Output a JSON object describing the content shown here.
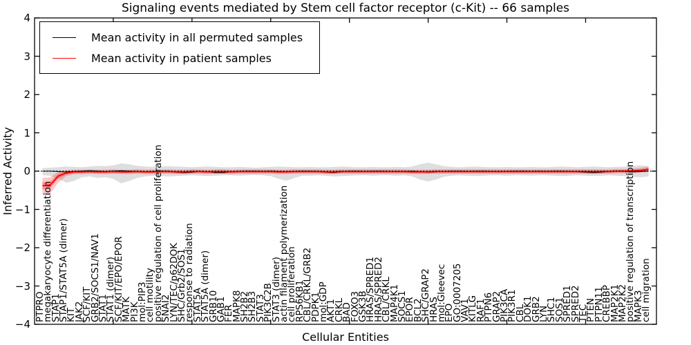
{
  "figure": {
    "title": "Signaling events mediated by Stem cell factor receptor (c-Kit) -- 66 samples",
    "xlabel": "Cellular Entities",
    "ylabel": "Inferred Activity"
  },
  "legend": {
    "items": [
      {
        "label": "Mean activity in all permuted samples",
        "color": "#000000"
      },
      {
        "label": "Mean activity in patient samples",
        "color": "#ff0000"
      }
    ]
  },
  "chart_data": {
    "type": "line",
    "title": "Signaling events mediated by Stem cell factor receptor (c-Kit) -- 66 samples",
    "xlabel": "Cellular Entities",
    "ylabel": "Inferred Activity",
    "ylim": [
      -4,
      4
    ],
    "yticks": [
      -4,
      -3,
      -2,
      -1,
      0,
      1,
      2,
      3,
      4
    ],
    "xticks_numeric": [
      10,
      20,
      30,
      40,
      50,
      60,
      70
    ],
    "grid": false,
    "legend_position": "upper left",
    "zero_line": {
      "y": 0,
      "style": "dotted",
      "color": "#000000"
    },
    "categories": [
      "PTPRO",
      "megakaryocyte differentiation",
      "STAP1",
      "STAP1/STAT5A (dimer)",
      "KIT",
      "JAK2",
      "SCF/KIT",
      "GRB2/SOCS1/NAV1",
      "STAT1",
      "STAT1 (dimer)",
      "SCF/KIT/EPO/EPOR",
      "MATK",
      "PI3K",
      "mol:PIP3",
      "cell motility",
      "positive regulation of cell proliferation",
      "SNAI2",
      "LYN/TEC/p62DOK",
      "SHC/Grb2/SOS1",
      "response to radiation",
      "STAT5A",
      "STAT5A (dimer)",
      "GRB10",
      "GAB1",
      "FER",
      "MAPK8",
      "SH2B2",
      "SH2B3",
      "STAT3",
      "PIK3C2B",
      "STAT3 (dimer)",
      "actin filament polymerization",
      "cell proliferation",
      "RPS6KB1",
      "CBL/CRKL/GRB2",
      "PDPK1",
      "mol:GDP",
      "AKT1",
      "CRKL",
      "BAD",
      "FOXO3",
      "GSK3B",
      "HRAS/SPRED1",
      "HRAS/SPRED2",
      "CBL/CRKL",
      "MAP4K1",
      "SOCS1",
      "EPOR",
      "BCL2",
      "SHC/GRAP2",
      "HRAS",
      "mol:Gleevec",
      "EPO",
      "GO:0007205",
      "VAV1",
      "KITLG",
      "RAF1",
      "PTPN6",
      "GRAP2",
      "PIK3CA",
      "PIK3R1",
      "CBL",
      "DOK1",
      "GRB2",
      "LYN",
      "SHC1",
      "SOS1",
      "SPRED1",
      "SPRED2",
      "TEC",
      "PTEN",
      "PTPN11",
      "CREBBP",
      "MAP2K1",
      "MAP2K2",
      "positive regulation of transcription",
      "MAPK3",
      "cell migration"
    ],
    "series": [
      {
        "name": "Mean activity in all permuted samples",
        "color": "#000000",
        "width": 1.1,
        "values": [
          0.0,
          0.0,
          -0.01,
          -0.02,
          -0.01,
          0.0,
          0.01,
          0.0,
          -0.01,
          0.0,
          0.01,
          0.0,
          -0.01,
          -0.02,
          -0.01,
          0.0,
          0.0,
          -0.03,
          -0.04,
          -0.03,
          -0.01,
          -0.02,
          -0.04,
          -0.04,
          -0.02,
          -0.01,
          0.0,
          0.0,
          -0.01,
          0.0,
          -0.01,
          -0.02,
          -0.01,
          0.0,
          0.0,
          -0.01,
          -0.03,
          -0.04,
          -0.02,
          0.0,
          0.0,
          -0.01,
          0.0,
          0.0,
          -0.01,
          -0.02,
          -0.01,
          0.0,
          -0.02,
          -0.03,
          -0.02,
          -0.01,
          0.0,
          0.0,
          -0.01,
          0.0,
          0.0,
          -0.01,
          -0.02,
          -0.01,
          0.0,
          0.0,
          -0.01,
          0.0,
          -0.01,
          0.0,
          0.0,
          -0.01,
          -0.02,
          -0.03,
          -0.04,
          -0.03,
          -0.01,
          0.0,
          -0.01,
          -0.02,
          -0.01,
          0.0
        ]
      },
      {
        "name": "Mean activity in patient samples",
        "color": "#ff0000",
        "width": 1.8,
        "values": [
          -0.38,
          -0.36,
          -0.13,
          -0.05,
          -0.02,
          -0.02,
          -0.01,
          -0.02,
          -0.02,
          -0.01,
          -0.02,
          -0.02,
          -0.01,
          -0.02,
          -0.02,
          -0.01,
          -0.01,
          -0.02,
          -0.02,
          -0.01,
          -0.01,
          -0.02,
          -0.01,
          -0.01,
          -0.02,
          -0.01,
          -0.01,
          -0.01,
          -0.01,
          -0.01,
          -0.02,
          -0.02,
          -0.01,
          -0.01,
          -0.01,
          -0.01,
          -0.02,
          -0.02,
          -0.01,
          -0.01,
          -0.01,
          -0.01,
          -0.01,
          -0.01,
          -0.01,
          -0.01,
          -0.01,
          -0.02,
          -0.02,
          -0.02,
          -0.01,
          -0.01,
          -0.01,
          -0.01,
          -0.01,
          -0.01,
          -0.01,
          -0.01,
          -0.01,
          -0.01,
          -0.01,
          -0.01,
          -0.01,
          -0.01,
          -0.01,
          -0.01,
          -0.01,
          -0.01,
          -0.01,
          -0.01,
          -0.01,
          -0.01,
          -0.01,
          0.0,
          0.0,
          0.01,
          0.02,
          0.05
        ]
      }
    ],
    "bands": [
      {
        "name": "permuted-sample-range",
        "color": "#000000",
        "alpha": 0.13,
        "upper": [
          0.08,
          0.09,
          0.1,
          0.12,
          0.11,
          0.1,
          0.12,
          0.14,
          0.13,
          0.15,
          0.2,
          0.18,
          0.14,
          0.12,
          0.11,
          0.12,
          0.13,
          0.12,
          0.11,
          0.1,
          0.11,
          0.12,
          0.11,
          0.1,
          0.1,
          0.11,
          0.1,
          0.09,
          0.1,
          0.11,
          0.12,
          0.11,
          0.1,
          0.1,
          0.11,
          0.1,
          0.1,
          0.11,
          0.12,
          0.11,
          0.1,
          0.1,
          0.11,
          0.1,
          0.1,
          0.11,
          0.1,
          0.12,
          0.18,
          0.22,
          0.18,
          0.13,
          0.11,
          0.1,
          0.11,
          0.12,
          0.11,
          0.1,
          0.1,
          0.11,
          0.1,
          0.1,
          0.11,
          0.1,
          0.1,
          0.11,
          0.12,
          0.11,
          0.1,
          0.11,
          0.12,
          0.11,
          0.1,
          0.11,
          0.12,
          0.14,
          0.15,
          0.13
        ],
        "lower": [
          -0.1,
          -0.12,
          -0.2,
          -0.3,
          -0.26,
          -0.16,
          -0.14,
          -0.18,
          -0.16,
          -0.2,
          -0.32,
          -0.26,
          -0.18,
          -0.14,
          -0.12,
          -0.13,
          -0.14,
          -0.13,
          -0.12,
          -0.11,
          -0.12,
          -0.13,
          -0.12,
          -0.11,
          -0.11,
          -0.12,
          -0.11,
          -0.1,
          -0.11,
          -0.13,
          -0.2,
          -0.25,
          -0.18,
          -0.12,
          -0.12,
          -0.11,
          -0.12,
          -0.14,
          -0.13,
          -0.12,
          -0.11,
          -0.11,
          -0.12,
          -0.11,
          -0.11,
          -0.12,
          -0.11,
          -0.14,
          -0.22,
          -0.27,
          -0.22,
          -0.15,
          -0.12,
          -0.11,
          -0.12,
          -0.13,
          -0.12,
          -0.11,
          -0.11,
          -0.12,
          -0.11,
          -0.11,
          -0.12,
          -0.11,
          -0.11,
          -0.12,
          -0.13,
          -0.12,
          -0.11,
          -0.12,
          -0.13,
          -0.12,
          -0.11,
          -0.12,
          -0.13,
          -0.15,
          -0.16,
          -0.14
        ]
      },
      {
        "name": "patient-sample-range-outer",
        "color": "#ff0000",
        "alpha": 0.22,
        "upper": [
          -0.18,
          -0.16,
          -0.02,
          0.02,
          0.04,
          0.04,
          0.05,
          0.04,
          0.04,
          0.05,
          0.04,
          0.04,
          0.05,
          0.04,
          0.04,
          0.05,
          0.05,
          0.04,
          0.04,
          0.05,
          0.05,
          0.04,
          0.05,
          0.05,
          0.04,
          0.05,
          0.05,
          0.05,
          0.05,
          0.05,
          0.04,
          0.04,
          0.05,
          0.05,
          0.05,
          0.05,
          0.04,
          0.04,
          0.05,
          0.05,
          0.05,
          0.05,
          0.05,
          0.05,
          0.05,
          0.05,
          0.05,
          0.04,
          0.04,
          0.04,
          0.05,
          0.05,
          0.05,
          0.05,
          0.05,
          0.05,
          0.05,
          0.05,
          0.05,
          0.05,
          0.05,
          0.05,
          0.05,
          0.05,
          0.05,
          0.05,
          0.05,
          0.05,
          0.05,
          0.05,
          0.05,
          0.05,
          0.05,
          0.06,
          0.06,
          0.07,
          0.09,
          0.12
        ],
        "lower": [
          -0.62,
          -0.58,
          -0.3,
          -0.13,
          -0.08,
          -0.08,
          -0.07,
          -0.08,
          -0.08,
          -0.07,
          -0.08,
          -0.08,
          -0.07,
          -0.08,
          -0.08,
          -0.07,
          -0.07,
          -0.08,
          -0.08,
          -0.07,
          -0.07,
          -0.08,
          -0.07,
          -0.07,
          -0.08,
          -0.07,
          -0.07,
          -0.07,
          -0.07,
          -0.07,
          -0.08,
          -0.08,
          -0.07,
          -0.07,
          -0.07,
          -0.07,
          -0.08,
          -0.08,
          -0.07,
          -0.07,
          -0.07,
          -0.07,
          -0.07,
          -0.07,
          -0.07,
          -0.07,
          -0.07,
          -0.08,
          -0.08,
          -0.08,
          -0.07,
          -0.07,
          -0.07,
          -0.07,
          -0.07,
          -0.07,
          -0.07,
          -0.07,
          -0.07,
          -0.07,
          -0.07,
          -0.07,
          -0.07,
          -0.07,
          -0.07,
          -0.07,
          -0.07,
          -0.07,
          -0.07,
          -0.07,
          -0.07,
          -0.07,
          -0.07,
          -0.06,
          -0.06,
          -0.05,
          -0.04,
          -0.02
        ]
      },
      {
        "name": "patient-sample-range-inner",
        "color": "#ff0000",
        "alpha": 0.3,
        "upper": [
          -0.29,
          -0.27,
          -0.08,
          -0.02,
          0.01,
          0.01,
          0.02,
          0.01,
          0.01,
          0.02,
          0.01,
          0.01,
          0.02,
          0.01,
          0.01,
          0.02,
          0.02,
          0.01,
          0.01,
          0.02,
          0.02,
          0.01,
          0.02,
          0.02,
          0.01,
          0.02,
          0.02,
          0.02,
          0.02,
          0.02,
          0.01,
          0.01,
          0.02,
          0.02,
          0.02,
          0.02,
          0.01,
          0.01,
          0.02,
          0.02,
          0.02,
          0.02,
          0.02,
          0.02,
          0.02,
          0.02,
          0.02,
          0.01,
          0.01,
          0.01,
          0.02,
          0.02,
          0.02,
          0.02,
          0.02,
          0.02,
          0.02,
          0.02,
          0.02,
          0.02,
          0.02,
          0.02,
          0.02,
          0.02,
          0.02,
          0.02,
          0.02,
          0.02,
          0.02,
          0.02,
          0.02,
          0.02,
          0.02,
          0.03,
          0.03,
          0.04,
          0.05,
          0.08
        ],
        "lower": [
          -0.48,
          -0.45,
          -0.19,
          -0.09,
          -0.05,
          -0.05,
          -0.04,
          -0.05,
          -0.05,
          -0.04,
          -0.05,
          -0.05,
          -0.04,
          -0.05,
          -0.05,
          -0.04,
          -0.04,
          -0.05,
          -0.05,
          -0.04,
          -0.04,
          -0.05,
          -0.04,
          -0.04,
          -0.05,
          -0.04,
          -0.04,
          -0.04,
          -0.04,
          -0.04,
          -0.05,
          -0.05,
          -0.04,
          -0.04,
          -0.04,
          -0.04,
          -0.05,
          -0.05,
          -0.04,
          -0.04,
          -0.04,
          -0.04,
          -0.04,
          -0.04,
          -0.04,
          -0.04,
          -0.04,
          -0.05,
          -0.05,
          -0.05,
          -0.04,
          -0.04,
          -0.04,
          -0.04,
          -0.04,
          -0.04,
          -0.04,
          -0.04,
          -0.04,
          -0.04,
          -0.04,
          -0.04,
          -0.04,
          -0.04,
          -0.04,
          -0.04,
          -0.04,
          -0.04,
          -0.04,
          -0.04,
          -0.04,
          -0.04,
          -0.04,
          -0.03,
          -0.03,
          -0.02,
          -0.01,
          0.02
        ]
      }
    ]
  }
}
